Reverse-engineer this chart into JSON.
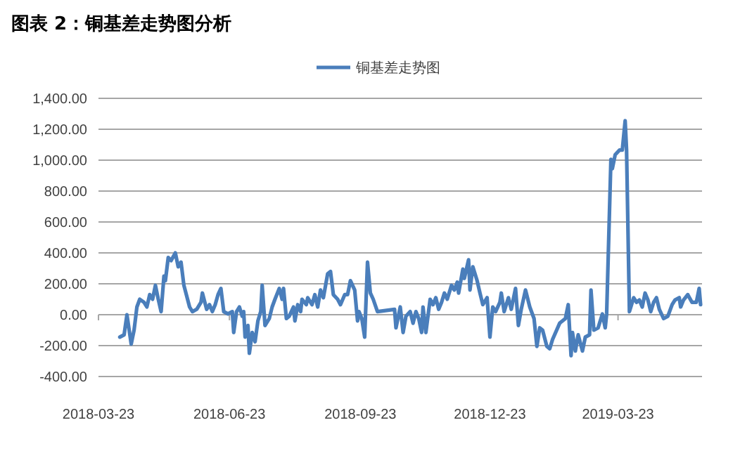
{
  "chart_data": {
    "type": "line",
    "title": "图表 2：铜基差走势图分析",
    "legend": "top",
    "grid": "y",
    "marker": "none",
    "line_style": "solid",
    "xlim": [
      "2018-03-23",
      "2019-05-21"
    ],
    "xticks": [
      {
        "value": "2018-03-23",
        "label": "2018-03-23"
      },
      {
        "value": "2018-06-23",
        "label": "2018-06-23"
      },
      {
        "value": "2018-09-23",
        "label": "2018-09-23"
      },
      {
        "value": "2018-12-23",
        "label": "2018-12-23"
      },
      {
        "value": "2019-03-23",
        "label": "2019-03-23"
      }
    ],
    "ylim": [
      -400,
      1400
    ],
    "yticks": [
      {
        "value": -400,
        "label": "-400.00"
      },
      {
        "value": -200,
        "label": "-200.00"
      },
      {
        "value": 0,
        "label": "0.00"
      },
      {
        "value": 200,
        "label": "200.00"
      },
      {
        "value": 400,
        "label": "400.00"
      },
      {
        "value": 600,
        "label": "600.00"
      },
      {
        "value": 800,
        "label": "800.00"
      },
      {
        "value": 1000,
        "label": "1,000.00"
      },
      {
        "value": 1200,
        "label": "1,200.00"
      },
      {
        "value": 1400,
        "label": "1,400.00"
      }
    ],
    "x": [
      "2018-04-07",
      "2018-04-10",
      "2018-04-12",
      "2018-04-15",
      "2018-04-17",
      "2018-04-19",
      "2018-04-21",
      "2018-04-24",
      "2018-04-26",
      "2018-04-28",
      "2018-04-30",
      "2018-05-02",
      "2018-05-04",
      "2018-05-06",
      "2018-05-08",
      "2018-05-09",
      "2018-05-11",
      "2018-05-13",
      "2018-05-16",
      "2018-05-18",
      "2018-05-20",
      "2018-05-22",
      "2018-05-26",
      "2018-05-28",
      "2018-05-31",
      "2018-06-03",
      "2018-06-04",
      "2018-06-07",
      "2018-06-09",
      "2018-06-11",
      "2018-06-13",
      "2018-06-15",
      "2018-06-17",
      "2018-06-19",
      "2018-06-22",
      "2018-06-25",
      "2018-06-26",
      "2018-06-28",
      "2018-06-30",
      "2018-07-02",
      "2018-07-03",
      "2018-07-04",
      "2018-07-06",
      "2018-07-07",
      "2018-07-09",
      "2018-07-11",
      "2018-07-13",
      "2018-07-15",
      "2018-07-16",
      "2018-07-18",
      "2018-07-21",
      "2018-07-23",
      "2018-07-25",
      "2018-07-28",
      "2018-07-30",
      "2018-07-31",
      "2018-08-02",
      "2018-08-04",
      "2018-08-07",
      "2018-08-08",
      "2018-08-10",
      "2018-08-12",
      "2018-08-13",
      "2018-08-16",
      "2018-08-17",
      "2018-08-20",
      "2018-08-22",
      "2018-08-24",
      "2018-08-26",
      "2018-08-28",
      "2018-08-31",
      "2018-09-02",
      "2018-09-04",
      "2018-09-07",
      "2018-09-09",
      "2018-09-12",
      "2018-09-14",
      "2018-09-16",
      "2018-09-19",
      "2018-09-21",
      "2018-09-22",
      "2018-09-24",
      "2018-09-26",
      "2018-09-28",
      "2018-09-30",
      "2018-10-02",
      "2018-10-05",
      "2018-10-17",
      "2018-10-18",
      "2018-10-21",
      "2018-10-23",
      "2018-10-25",
      "2018-10-28",
      "2018-10-30",
      "2018-11-01",
      "2018-11-03",
      "2018-11-05",
      "2018-11-06",
      "2018-11-08",
      "2018-11-11",
      "2018-11-13",
      "2018-11-15",
      "2018-11-17",
      "2018-11-19",
      "2018-11-21",
      "2018-11-23",
      "2018-11-26",
      "2018-11-28",
      "2018-11-30",
      "2018-12-01",
      "2018-12-04",
      "2018-12-05",
      "2018-12-08",
      "2018-12-09",
      "2018-12-11",
      "2018-12-14",
      "2018-12-16",
      "2018-12-18",
      "2018-12-21",
      "2018-12-23",
      "2018-12-25",
      "2018-12-27",
      "2018-12-30",
      "2018-12-31",
      "2019-01-02",
      "2019-01-05",
      "2019-01-07",
      "2019-01-10",
      "2019-01-12",
      "2019-01-14",
      "2019-01-17",
      "2019-01-20",
      "2019-01-23",
      "2019-01-25",
      "2019-01-27",
      "2019-01-29",
      "2019-02-01",
      "2019-02-03",
      "2019-02-05",
      "2019-02-10",
      "2019-02-14",
      "2019-02-16",
      "2019-02-18",
      "2019-02-19",
      "2019-02-21",
      "2019-02-23",
      "2019-02-26",
      "2019-02-28",
      "2019-03-03",
      "2019-03-04",
      "2019-03-06",
      "2019-03-09",
      "2019-03-12",
      "2019-03-14",
      "2019-03-15",
      "2019-03-18",
      "2019-03-19",
      "2019-03-21",
      "2019-03-24",
      "2019-03-26",
      "2019-03-28",
      "2019-03-29",
      "2019-03-31",
      "2019-04-03",
      "2019-04-05",
      "2019-04-07",
      "2019-04-09",
      "2019-04-11",
      "2019-04-13",
      "2019-04-15",
      "2019-04-17",
      "2019-04-19",
      "2019-04-21",
      "2019-04-24",
      "2019-04-27",
      "2019-04-30",
      "2019-05-02",
      "2019-05-05",
      "2019-05-06",
      "2019-05-08",
      "2019-05-11",
      "2019-05-14",
      "2019-05-17",
      "2019-05-19",
      "2019-05-20"
    ],
    "series": [
      {
        "name": "铜基差走势图",
        "color": "#4a7ebb",
        "values": [
          -145,
          -130,
          0,
          -190,
          -100,
          50,
          100,
          80,
          50,
          130,
          100,
          190,
          100,
          20,
          250,
          220,
          370,
          350,
          400,
          310,
          340,
          190,
          50,
          20,
          35,
          80,
          140,
          35,
          65,
          20,
          65,
          130,
          170,
          20,
          5,
          20,
          -115,
          20,
          50,
          -10,
          20,
          -145,
          -70,
          -250,
          -115,
          -175,
          -40,
          20,
          190,
          -70,
          -25,
          50,
          100,
          170,
          100,
          170,
          -25,
          -10,
          50,
          -40,
          65,
          20,
          100,
          65,
          110,
          65,
          130,
          50,
          160,
          110,
          265,
          280,
          130,
          100,
          65,
          130,
          130,
          220,
          160,
          -40,
          20,
          -25,
          -145,
          340,
          140,
          100,
          20,
          35,
          -85,
          50,
          -115,
          -10,
          20,
          -55,
          20,
          -25,
          -115,
          50,
          -115,
          100,
          65,
          110,
          35,
          80,
          140,
          100,
          190,
          160,
          210,
          140,
          295,
          235,
          355,
          160,
          310,
          220,
          140,
          65,
          110,
          -145,
          50,
          20,
          80,
          140,
          20,
          110,
          35,
          170,
          -70,
          35,
          160,
          50,
          -25,
          -205,
          -85,
          -100,
          -205,
          -220,
          -160,
          -55,
          -25,
          65,
          -265,
          -115,
          -235,
          -130,
          -235,
          -145,
          -130,
          160,
          -100,
          -85,
          5,
          -85,
          5,
          1005,
          945,
          1035,
          1065,
          1065,
          1255,
          1065,
          20,
          110,
          80,
          95,
          50,
          140,
          95,
          20,
          80,
          110,
          35,
          -25,
          -10,
          65,
          95,
          110,
          50,
          95,
          130,
          80,
          80,
          170,
          65
        ]
      }
    ]
  }
}
